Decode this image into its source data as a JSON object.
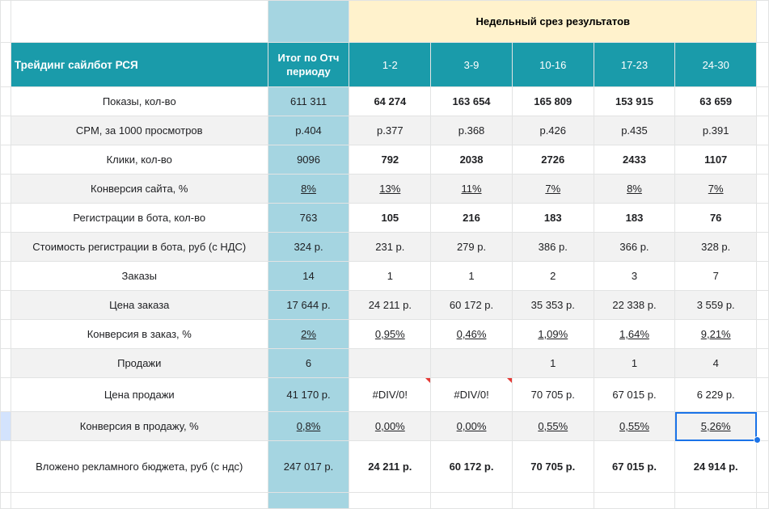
{
  "header": {
    "week_band": "Недельный срез результатов",
    "title": "Трейдинг сайлбот РСЯ",
    "total_col": "Итог по Отч периоду",
    "weeks": [
      "1-2",
      "3-9",
      "10-16",
      "17-23",
      "24-30"
    ]
  },
  "rows": [
    {
      "label": "Показы, кол-во",
      "total": "611 311",
      "values": [
        "64 274",
        "163 654",
        "165 809",
        "153 915",
        "63 659"
      ]
    },
    {
      "label": "CPM, за 1000 просмотров",
      "total": "р.404",
      "values": [
        "р.377",
        "р.368",
        "р.426",
        "р.435",
        "р.391"
      ]
    },
    {
      "label": "Клики, кол-во",
      "total": "9096",
      "values": [
        "792",
        "2038",
        "2726",
        "2433",
        "1107"
      ]
    },
    {
      "label": "Конверсия сайта, %",
      "total": "8%",
      "values": [
        "13%",
        "11%",
        "7%",
        "8%",
        "7%"
      ]
    },
    {
      "label": "Регистрации в бота, кол-во",
      "total": "763",
      "values": [
        "105",
        "216",
        "183",
        "183",
        "76"
      ]
    },
    {
      "label": "Стоимость регистрации в бота, руб (с НДС)",
      "total": "324 р.",
      "values": [
        "231 р.",
        "279 р.",
        "386 р.",
        "366 р.",
        "328 р."
      ]
    },
    {
      "label": "Заказы",
      "total": "14",
      "values": [
        "1",
        "1",
        "2",
        "3",
        "7"
      ]
    },
    {
      "label": "Цена заказа",
      "total": "17 644 р.",
      "values": [
        "24 211 р.",
        "60 172 р.",
        "35 353 р.",
        "22 338 р.",
        "3 559 р."
      ]
    },
    {
      "label": "Конверсия в заказ, %",
      "total": "2%",
      "values": [
        "0,95%",
        "0,46%",
        "1,09%",
        "1,64%",
        "9,21%"
      ]
    },
    {
      "label": "Продажи",
      "total": "6",
      "values": [
        "",
        "",
        "1",
        "1",
        "4"
      ]
    },
    {
      "label": "Цена продажи",
      "total": "41 170 р.",
      "values": [
        "#DIV/0!",
        "#DIV/0!",
        "70 705 р.",
        "67 015 р.",
        "6 229 р."
      ]
    },
    {
      "label": "Конверсия в продажу, %",
      "total": "0,8%",
      "values": [
        "0,00%",
        "0,00%",
        "0,55%",
        "0,55%",
        "5,26%"
      ]
    },
    {
      "label": "Вложено рекламного бюджета, руб (с ндс)",
      "total": "247 017 р.",
      "values": [
        "24 211 р.",
        "60 172 р.",
        "70 705 р.",
        "67 015 р.",
        "24 914 р."
      ]
    }
  ],
  "colors": {
    "header_teal": "#1a9baa",
    "total_column": "#a5d5e1",
    "band_yellow": "#fff2cc",
    "selection": "#1a73e8",
    "error_marker": "#e53935"
  }
}
